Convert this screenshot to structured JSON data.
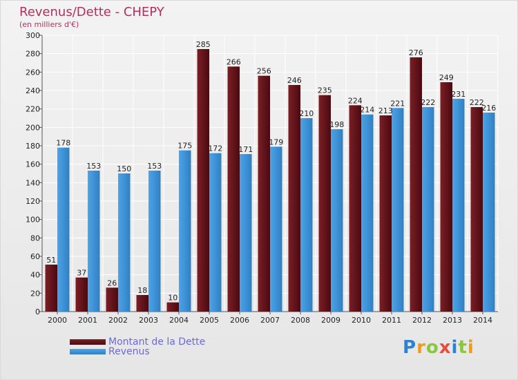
{
  "header": {
    "title": "Revenus/Dette - CHEPY",
    "subtitle": "(en milliers d'€)"
  },
  "legend": {
    "debt_label": "Montant de la Dette",
    "revenue_label": "Revenus"
  },
  "logo": {
    "letters": [
      "P",
      "r",
      "o",
      "x",
      "i",
      "t",
      "i"
    ],
    "colors": [
      "#2a82d8",
      "#f39c12",
      "#8cc63f",
      "#e74c3c",
      "#2a82d8",
      "#8cc63f",
      "#f39c12"
    ]
  },
  "colors": {
    "debt": "#7a1f25",
    "debt_dark": "#4a0a10",
    "revenue": "#4da3e6",
    "revenue_dark": "#2f7fc4",
    "title": "#b03060"
  },
  "chart_data": {
    "type": "bar",
    "title": "Revenus/Dette - CHEPY",
    "ylabel": "(en milliers d'€)",
    "xlabel": "",
    "ylim": [
      0,
      300
    ],
    "yticks": [
      0,
      20,
      40,
      60,
      80,
      100,
      120,
      140,
      160,
      180,
      200,
      220,
      240,
      260,
      280,
      300
    ],
    "grid": true,
    "legend_position": "bottom-left",
    "categories": [
      "2000",
      "2001",
      "2002",
      "2003",
      "2004",
      "2005",
      "2006",
      "2007",
      "2008",
      "2009",
      "2010",
      "2011",
      "2012",
      "2013",
      "2014"
    ],
    "series": [
      {
        "name": "Montant de la Dette",
        "values": [
          51,
          37,
          26,
          18,
          10,
          285,
          266,
          256,
          246,
          235,
          224,
          213,
          276,
          249,
          222
        ]
      },
      {
        "name": "Revenus",
        "values": [
          178,
          153,
          150,
          153,
          175,
          172,
          171,
          179,
          210,
          198,
          214,
          221,
          222,
          231,
          216
        ]
      }
    ]
  }
}
